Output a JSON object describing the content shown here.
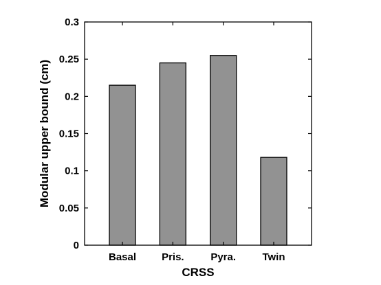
{
  "chart_data": {
    "type": "bar",
    "categories": [
      "Basal",
      "Pris.",
      "Pyra.",
      "Twin"
    ],
    "values": [
      0.215,
      0.245,
      0.255,
      0.118
    ],
    "xlabel": "CRSS",
    "ylabel": "Modular upper bound (cm)",
    "ylim": [
      0,
      0.3
    ],
    "yticks": [
      "0",
      "0.05",
      "0.1",
      "0.15",
      "0.2",
      "0.25",
      "0.3"
    ],
    "grid": false,
    "bar_color": "#929292",
    "edge_color": "#000000"
  }
}
